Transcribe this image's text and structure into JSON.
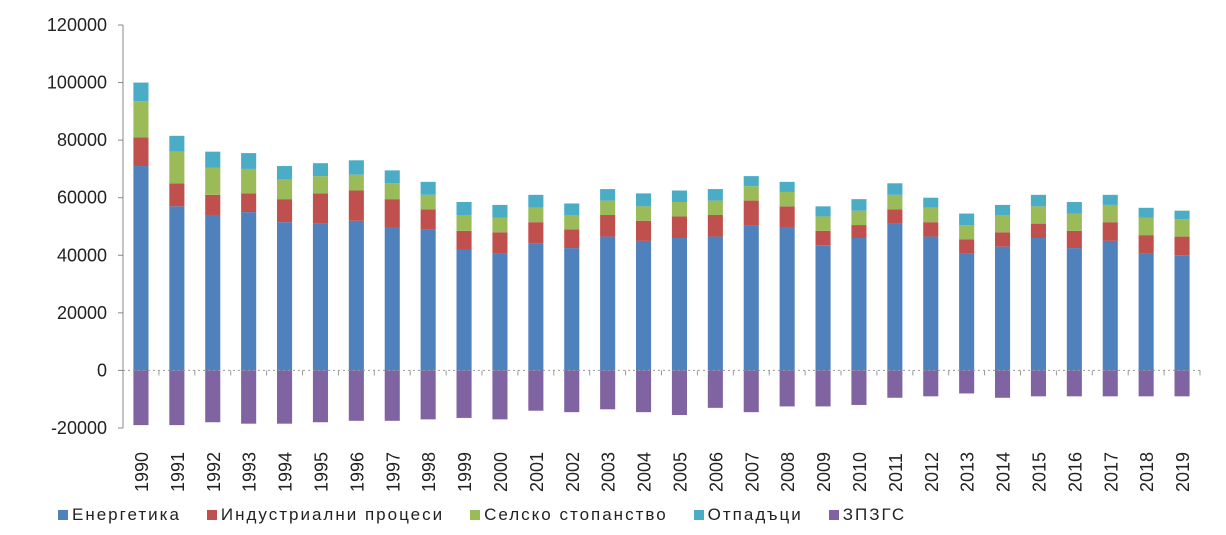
{
  "chart_data": {
    "type": "bar",
    "stacked": true,
    "categories": [
      "1990",
      "1991",
      "1992",
      "1993",
      "1994",
      "1995",
      "1996",
      "1997",
      "1998",
      "1999",
      "2000",
      "2001",
      "2002",
      "2003",
      "2004",
      "2005",
      "2006",
      "2007",
      "2008",
      "2009",
      "2010",
      "2011",
      "2012",
      "2013",
      "2014",
      "2015",
      "2016",
      "2017",
      "2018",
      "2019"
    ],
    "series": [
      {
        "name": "Енергетика",
        "color": "#4F81BD",
        "values": [
          71000,
          57000,
          54000,
          55000,
          51500,
          51000,
          52000,
          49500,
          49000,
          42000,
          40500,
          44000,
          42500,
          46500,
          45000,
          46000,
          46500,
          50500,
          49500,
          43500,
          46000,
          51000,
          46500,
          40500,
          43000,
          46000,
          42500,
          45000,
          40500,
          40000
        ]
      },
      {
        "name": "Индустриални процеси",
        "color": "#C0504D",
        "values": [
          10000,
          8000,
          7000,
          6500,
          8000,
          10500,
          10500,
          10000,
          7000,
          6500,
          7500,
          7500,
          6500,
          7500,
          7000,
          7500,
          7500,
          8500,
          7500,
          5000,
          4500,
          5000,
          5000,
          5000,
          5000,
          5000,
          6000,
          6500,
          6500,
          6500
        ]
      },
      {
        "name": "Селско стопанство",
        "color": "#9BBB59",
        "values": [
          12500,
          11000,
          9500,
          8500,
          7000,
          6000,
          5500,
          5500,
          5000,
          5500,
          5000,
          5000,
          5000,
          5000,
          5000,
          5000,
          5000,
          5000,
          5000,
          5000,
          5000,
          5000,
          5000,
          5000,
          6000,
          6000,
          6000,
          6000,
          6000,
          6000
        ]
      },
      {
        "name": "Отпадъци",
        "color": "#4BACC6",
        "values": [
          6500,
          5500,
          5500,
          5500,
          4500,
          4500,
          5000,
          4500,
          4500,
          4500,
          4500,
          4500,
          4000,
          4000,
          4500,
          4000,
          4000,
          3500,
          3500,
          3500,
          4000,
          4000,
          3500,
          4000,
          3500,
          4000,
          4000,
          3500,
          3500,
          3000
        ]
      },
      {
        "name": "ЗПЗГС",
        "color": "#8064A2",
        "values": [
          -19000,
          -19000,
          -18000,
          -18500,
          -18500,
          -18000,
          -17500,
          -17500,
          -17000,
          -16500,
          -17000,
          -14000,
          -14500,
          -13500,
          -14500,
          -15500,
          -13000,
          -14500,
          -12500,
          -12500,
          -12000,
          -9500,
          -9000,
          -8000,
          -9500,
          -9000,
          -9000,
          -9000,
          -9000,
          -9000
        ]
      }
    ],
    "ylim": [
      -20000,
      120000
    ],
    "yticks": [
      "120000",
      "100000",
      "80000",
      "60000",
      "40000",
      "20000",
      "0",
      "-20000"
    ],
    "legend_position": "bottom"
  }
}
